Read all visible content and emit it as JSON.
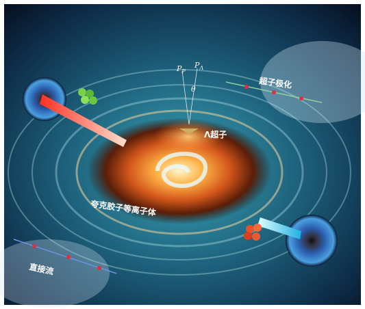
{
  "annotations": {
    "p_p": {
      "base": "P",
      "sub": "P"
    },
    "p_lambda": {
      "base": "P",
      "sub": "Λ"
    },
    "theta": "θ"
  },
  "labels": {
    "hyperon_polarization": "超子极化",
    "lambda_hyperon": "Λ超子",
    "qgp": "夸克胶子等离子体",
    "directed_flow": "直接流"
  }
}
